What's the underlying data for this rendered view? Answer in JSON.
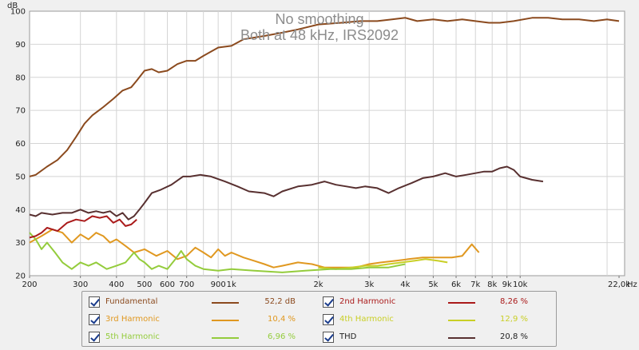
{
  "chart_data": {
    "type": "line",
    "title": "No smoothing",
    "subtitle": "Both at 48 kHz, IRS2092",
    "ylabel": "dB",
    "xunit": "Hz",
    "xscale": "log",
    "xlim": [
      200,
      23000
    ],
    "ylim": [
      20,
      100
    ],
    "y_ticks": [
      {
        "v": 20,
        "label": "20"
      },
      {
        "v": 30,
        "label": "30"
      },
      {
        "v": 40,
        "label": "40"
      },
      {
        "v": 50,
        "label": "50"
      },
      {
        "v": 60,
        "label": "60"
      },
      {
        "v": 70,
        "label": "70"
      },
      {
        "v": 80,
        "label": "80"
      },
      {
        "v": 90,
        "label": "90"
      },
      {
        "v": 100,
        "label": "100"
      }
    ],
    "x_ticks": [
      {
        "v": 200,
        "label": "200"
      },
      {
        "v": 300,
        "label": "300"
      },
      {
        "v": 400,
        "label": "400"
      },
      {
        "v": 500,
        "label": "500"
      },
      {
        "v": 600,
        "label": "600"
      },
      {
        "v": 700,
        "label": "700"
      },
      {
        "v": 900,
        "label": "900"
      },
      {
        "v": 1000,
        "label": "1k"
      },
      {
        "v": 2000,
        "label": "2k"
      },
      {
        "v": 3000,
        "label": "3k"
      },
      {
        "v": 4000,
        "label": "4k"
      },
      {
        "v": 5000,
        "label": "5k"
      },
      {
        "v": 6000,
        "label": "6k"
      },
      {
        "v": 7000,
        "label": "7k"
      },
      {
        "v": 8000,
        "label": "8k"
      },
      {
        "v": 9000,
        "label": "9k"
      },
      {
        "v": 10000,
        "label": "10k"
      },
      {
        "v": 22000,
        "label": "22,0k"
      }
    ],
    "grid": true,
    "series": [
      {
        "name": "Fundamental",
        "value": "52,2 dB",
        "color": "#8b4a1e",
        "points": [
          [
            200,
            50
          ],
          [
            210,
            50.5
          ],
          [
            230,
            53
          ],
          [
            250,
            55
          ],
          [
            270,
            58
          ],
          [
            290,
            62
          ],
          [
            310,
            66
          ],
          [
            330,
            68.5
          ],
          [
            360,
            71
          ],
          [
            390,
            73.5
          ],
          [
            420,
            76
          ],
          [
            450,
            77
          ],
          [
            470,
            79
          ],
          [
            500,
            82
          ],
          [
            530,
            82.5
          ],
          [
            560,
            81.5
          ],
          [
            600,
            82
          ],
          [
            650,
            84
          ],
          [
            700,
            85
          ],
          [
            750,
            85
          ],
          [
            800,
            86.5
          ],
          [
            900,
            89
          ],
          [
            1000,
            89.5
          ],
          [
            1100,
            91.5
          ],
          [
            1300,
            92.5
          ],
          [
            1500,
            93.5
          ],
          [
            1700,
            94.5
          ],
          [
            2000,
            96
          ],
          [
            2400,
            96.5
          ],
          [
            2800,
            97
          ],
          [
            3200,
            97
          ],
          [
            3600,
            97.5
          ],
          [
            4000,
            98
          ],
          [
            4400,
            97
          ],
          [
            5000,
            97.5
          ],
          [
            5600,
            97
          ],
          [
            6300,
            97.5
          ],
          [
            7000,
            97
          ],
          [
            7800,
            96.5
          ],
          [
            8500,
            96.5
          ],
          [
            9500,
            97
          ],
          [
            11000,
            98
          ],
          [
            12500,
            98
          ],
          [
            14000,
            97.5
          ],
          [
            16000,
            97.5
          ],
          [
            18000,
            97
          ],
          [
            20000,
            97.5
          ],
          [
            22000,
            97
          ]
        ]
      },
      {
        "name": "2nd Harmonic",
        "value": "8,26 %",
        "color": "#aa1a1a",
        "points": [
          [
            200,
            31.5
          ],
          [
            210,
            32
          ],
          [
            220,
            33
          ],
          [
            230,
            34.5
          ],
          [
            240,
            34
          ],
          [
            250,
            33.5
          ],
          [
            270,
            36
          ],
          [
            290,
            37
          ],
          [
            310,
            36.5
          ],
          [
            330,
            38
          ],
          [
            350,
            37.5
          ],
          [
            370,
            38
          ],
          [
            390,
            36
          ],
          [
            410,
            37
          ],
          [
            430,
            35
          ],
          [
            450,
            35.5
          ],
          [
            470,
            37
          ]
        ]
      },
      {
        "name": "3rd Harmonic",
        "value": "10,4 %",
        "color": "#e09820",
        "points": [
          [
            200,
            30
          ],
          [
            220,
            32
          ],
          [
            240,
            34
          ],
          [
            260,
            33
          ],
          [
            280,
            30
          ],
          [
            300,
            32.5
          ],
          [
            320,
            31
          ],
          [
            340,
            33
          ],
          [
            360,
            32
          ],
          [
            380,
            30
          ],
          [
            400,
            31
          ],
          [
            430,
            29
          ],
          [
            460,
            27
          ],
          [
            500,
            28
          ],
          [
            550,
            26
          ],
          [
            600,
            27.5
          ],
          [
            650,
            25
          ],
          [
            700,
            26
          ],
          [
            750,
            28.5
          ],
          [
            800,
            27
          ],
          [
            850,
            25.5
          ],
          [
            900,
            28
          ],
          [
            950,
            26
          ],
          [
            1000,
            27
          ],
          [
            1100,
            25.5
          ],
          [
            1200,
            24.5
          ],
          [
            1300,
            23.5
          ],
          [
            1400,
            22.5
          ],
          [
            1500,
            23
          ],
          [
            1700,
            24
          ],
          [
            1900,
            23.5
          ],
          [
            2100,
            22.5
          ],
          [
            2400,
            22.5
          ],
          [
            2700,
            22.5
          ],
          [
            3000,
            23.5
          ],
          [
            3300,
            24
          ],
          [
            3700,
            24.5
          ],
          [
            4100,
            25
          ],
          [
            4600,
            25.5
          ],
          [
            5200,
            25.5
          ],
          [
            5800,
            25.5
          ],
          [
            6300,
            26
          ],
          [
            6800,
            29.5
          ],
          [
            7200,
            27
          ]
        ]
      },
      {
        "name": "4th Harmonic",
        "value": "12,9 %",
        "color": "#c9cf26",
        "points": [
          [
            2000,
            22.5
          ],
          [
            2300,
            22
          ],
          [
            2600,
            22.5
          ],
          [
            2900,
            23
          ],
          [
            3200,
            23
          ],
          [
            3500,
            23.5
          ],
          [
            3900,
            24
          ],
          [
            4300,
            24.5
          ],
          [
            4700,
            25
          ],
          [
            5200,
            24.5
          ],
          [
            5600,
            24
          ]
        ]
      },
      {
        "name": "5th Harmonic",
        "value": "6,96 %",
        "color": "#94cc3c",
        "points": [
          [
            200,
            33
          ],
          [
            210,
            31
          ],
          [
            220,
            28
          ],
          [
            230,
            30
          ],
          [
            245,
            27
          ],
          [
            260,
            24
          ],
          [
            280,
            22
          ],
          [
            300,
            24
          ],
          [
            320,
            23
          ],
          [
            340,
            24
          ],
          [
            370,
            22
          ],
          [
            400,
            23
          ],
          [
            430,
            24
          ],
          [
            460,
            27
          ],
          [
            480,
            25
          ],
          [
            500,
            24
          ],
          [
            530,
            22
          ],
          [
            560,
            23
          ],
          [
            600,
            22
          ],
          [
            640,
            25
          ],
          [
            670,
            27.5
          ],
          [
            700,
            25
          ],
          [
            750,
            23
          ],
          [
            800,
            22
          ],
          [
            900,
            21.5
          ],
          [
            1000,
            22
          ],
          [
            1200,
            21.5
          ],
          [
            1500,
            21
          ],
          [
            1800,
            21.5
          ],
          [
            2200,
            22
          ],
          [
            2600,
            22
          ],
          [
            3000,
            22.5
          ],
          [
            3500,
            22.5
          ],
          [
            4000,
            23.5
          ]
        ]
      },
      {
        "name": "THD",
        "value": "20,8 %",
        "color": "#583030",
        "points": [
          [
            200,
            38.5
          ],
          [
            210,
            38
          ],
          [
            220,
            39
          ],
          [
            240,
            38.5
          ],
          [
            260,
            39
          ],
          [
            280,
            39
          ],
          [
            300,
            40
          ],
          [
            320,
            39
          ],
          [
            340,
            39.5
          ],
          [
            360,
            39
          ],
          [
            380,
            39.5
          ],
          [
            400,
            38
          ],
          [
            420,
            39
          ],
          [
            440,
            37
          ],
          [
            460,
            38
          ],
          [
            480,
            40
          ],
          [
            500,
            42
          ],
          [
            530,
            45
          ],
          [
            570,
            46
          ],
          [
            620,
            47.5
          ],
          [
            680,
            50
          ],
          [
            720,
            50
          ],
          [
            780,
            50.5
          ],
          [
            850,
            50
          ],
          [
            950,
            48.5
          ],
          [
            1050,
            47
          ],
          [
            1150,
            45.5
          ],
          [
            1300,
            45
          ],
          [
            1400,
            44
          ],
          [
            1500,
            45.5
          ],
          [
            1700,
            47
          ],
          [
            1900,
            47.5
          ],
          [
            2100,
            48.5
          ],
          [
            2300,
            47.5
          ],
          [
            2500,
            47
          ],
          [
            2700,
            46.5
          ],
          [
            2900,
            47
          ],
          [
            3200,
            46.5
          ],
          [
            3500,
            45
          ],
          [
            3800,
            46.5
          ],
          [
            4200,
            48
          ],
          [
            4600,
            49.5
          ],
          [
            5000,
            50
          ],
          [
            5500,
            51
          ],
          [
            6000,
            50
          ],
          [
            6500,
            50.5
          ],
          [
            7000,
            51
          ],
          [
            7500,
            51.5
          ],
          [
            8000,
            51.5
          ],
          [
            8500,
            52.5
          ],
          [
            9000,
            53
          ],
          [
            9500,
            52
          ],
          [
            10000,
            50
          ],
          [
            11000,
            49
          ],
          [
            12000,
            48.5
          ]
        ]
      }
    ]
  },
  "legend": {
    "left_series": [
      "Fundamental",
      "3rd Harmonic",
      "5th Harmonic"
    ],
    "right_series": [
      "2nd Harmonic",
      "4th Harmonic",
      "THD"
    ]
  }
}
